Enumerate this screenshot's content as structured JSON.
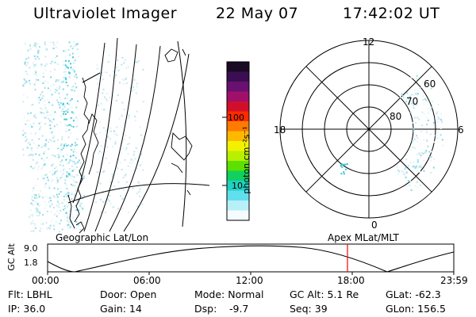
{
  "header": {
    "instrument": "Ultraviolet Imager",
    "date": "22 May 07",
    "time": "17:42:02 UT"
  },
  "colorbar": {
    "unit_label": "photon cm⁻²s⁻¹",
    "ticks": [
      "100",
      "10"
    ],
    "colors_top_to_bottom": [
      "#1a0a24",
      "#3b0d52",
      "#6a1070",
      "#a0106a",
      "#d0102a",
      "#ff2a00",
      "#ff7a00",
      "#ffb800",
      "#f2f200",
      "#b8f000",
      "#5ce000",
      "#10d060",
      "#20d0c0",
      "#60e0ee",
      "#b8f0f8",
      "#f4fcfe"
    ]
  },
  "polar_plot": {
    "mlt_labels": [
      "12",
      "18",
      "6",
      "0"
    ],
    "lat_labels": [
      "60",
      "70",
      "80"
    ]
  },
  "left_panel": {
    "label": "Geographic Lat/Lon"
  },
  "right_panel": {
    "label": "Apex MLat/MLT"
  },
  "altitude_strip": {
    "axis_title": "GC Alt",
    "y_ticks": [
      "9.0",
      "1.8"
    ],
    "x_ticks": [
      "00:00",
      "06:00",
      "12:00",
      "18:00",
      "23:59"
    ],
    "marker_color": "#ff0000"
  },
  "info": {
    "filter": "Flt: LBHL",
    "ip": "IP: 36.0",
    "door": "Door: Open",
    "gain": "Gain: 14",
    "mode": "Mode: Normal",
    "dsp": "Dsp:",
    "dsp_value": "-9.7",
    "gc_alt": "GC Alt: 5.1 Re",
    "seq": "Seq: 39",
    "glat": "GLat: -62.3",
    "glon": "GLon: 156.5"
  }
}
